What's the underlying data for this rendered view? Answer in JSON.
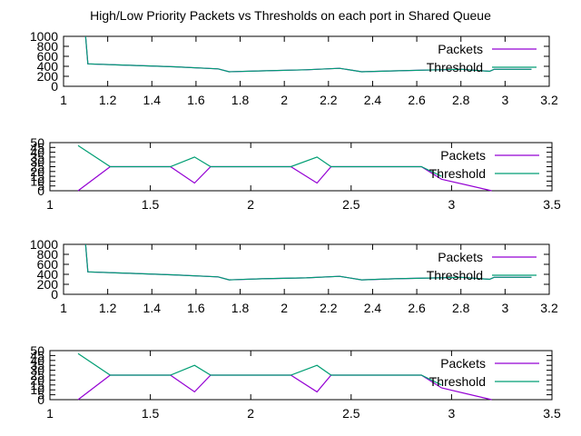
{
  "title": "High/Low Priority Packets vs Thresholds on each port in Shared Queue",
  "colors": {
    "packets": "#9400d3",
    "threshold": "#009e73",
    "axis": "#000000"
  },
  "chart_data": [
    {
      "type": "line",
      "xlim": [
        1,
        3.2
      ],
      "ylim": [
        0,
        1000
      ],
      "xticks": [
        "1",
        "1.2",
        "1.4",
        "1.6",
        "1.8",
        "2",
        "2.2",
        "2.4",
        "2.6",
        "2.8",
        "3",
        "3.2"
      ],
      "yticks": [
        "0",
        "200",
        "400",
        "600",
        "800",
        "1000"
      ],
      "legend": [
        "Packets",
        "Threshold"
      ],
      "series": [
        {
          "name": "Packets",
          "x": [
            1.1,
            1.11,
            1.3,
            1.5,
            1.7,
            1.75,
            1.9,
            2.1,
            2.25,
            2.35,
            2.5,
            2.7,
            2.8,
            2.93,
            2.95,
            3.12
          ],
          "y": [
            1000,
            450,
            420,
            390,
            350,
            290,
            310,
            330,
            360,
            290,
            310,
            330,
            340,
            300,
            340,
            340
          ]
        },
        {
          "name": "Threshold",
          "x": [
            1.1,
            1.11,
            1.3,
            1.5,
            1.7,
            1.75,
            1.9,
            2.1,
            2.25,
            2.35,
            2.5,
            2.7,
            2.8,
            2.93,
            2.95,
            3.12
          ],
          "y": [
            1000,
            450,
            420,
            390,
            350,
            290,
            310,
            330,
            360,
            290,
            310,
            330,
            340,
            300,
            340,
            340
          ]
        }
      ]
    },
    {
      "type": "line",
      "xlim": [
        1,
        3.5
      ],
      "ylim": [
        0,
        50
      ],
      "xticks": [
        "1",
        "1.5",
        "2",
        "2.5",
        "3",
        "3.5"
      ],
      "yticks": [
        "0",
        "5",
        "10",
        "15",
        "20",
        "25",
        "30",
        "35",
        "40",
        "45",
        "50"
      ],
      "legend": [
        "Packets",
        "Threshold"
      ],
      "series": [
        {
          "name": "Packets",
          "x": [
            1.14,
            1.3,
            1.6,
            1.72,
            1.8,
            2.2,
            2.33,
            2.4,
            2.85,
            2.95,
            3.2
          ],
          "y": [
            0,
            25,
            25,
            8,
            25,
            25,
            8,
            25,
            25,
            12,
            0
          ]
        },
        {
          "name": "Threshold",
          "x": [
            1.14,
            1.3,
            1.6,
            1.72,
            1.8,
            2.2,
            2.33,
            2.4,
            2.85,
            2.95
          ],
          "y": [
            47,
            25,
            25,
            35,
            25,
            25,
            35,
            25,
            25,
            15
          ]
        }
      ]
    },
    {
      "type": "line",
      "xlim": [
        1,
        3.2
      ],
      "ylim": [
        0,
        1000
      ],
      "xticks": [
        "1",
        "1.2",
        "1.4",
        "1.6",
        "1.8",
        "2",
        "2.2",
        "2.4",
        "2.6",
        "2.8",
        "3",
        "3.2"
      ],
      "yticks": [
        "0",
        "200",
        "400",
        "600",
        "800",
        "1000"
      ],
      "legend": [
        "Packets",
        "Threshold"
      ],
      "series": [
        {
          "name": "Packets",
          "x": [
            1.1,
            1.11,
            1.3,
            1.5,
            1.7,
            1.75,
            1.9,
            2.1,
            2.25,
            2.35,
            2.5,
            2.7,
            2.8,
            2.93,
            2.95,
            3.12
          ],
          "y": [
            1000,
            450,
            420,
            390,
            350,
            290,
            310,
            330,
            360,
            290,
            310,
            330,
            340,
            300,
            340,
            340
          ]
        },
        {
          "name": "Threshold",
          "x": [
            1.1,
            1.11,
            1.3,
            1.5,
            1.7,
            1.75,
            1.9,
            2.1,
            2.25,
            2.35,
            2.5,
            2.7,
            2.8,
            2.93,
            2.95,
            3.12
          ],
          "y": [
            1000,
            450,
            420,
            390,
            350,
            290,
            310,
            330,
            360,
            290,
            310,
            330,
            340,
            300,
            340,
            340
          ]
        }
      ]
    },
    {
      "type": "line",
      "xlim": [
        1,
        3.5
      ],
      "ylim": [
        0,
        50
      ],
      "xticks": [
        "1",
        "1.5",
        "2",
        "2.5",
        "3",
        "3.5"
      ],
      "yticks": [
        "0",
        "5",
        "10",
        "15",
        "20",
        "25",
        "30",
        "35",
        "40",
        "45",
        "50"
      ],
      "legend": [
        "Packets",
        "Threshold"
      ],
      "series": [
        {
          "name": "Packets",
          "x": [
            1.14,
            1.3,
            1.6,
            1.72,
            1.8,
            2.2,
            2.33,
            2.4,
            2.85,
            2.95,
            3.2
          ],
          "y": [
            0,
            25,
            25,
            8,
            25,
            25,
            8,
            25,
            25,
            12,
            0
          ]
        },
        {
          "name": "Threshold",
          "x": [
            1.14,
            1.3,
            1.6,
            1.72,
            1.8,
            2.2,
            2.33,
            2.4,
            2.85,
            2.95
          ],
          "y": [
            47,
            25,
            25,
            35,
            25,
            25,
            35,
            25,
            25,
            15
          ]
        }
      ]
    }
  ]
}
